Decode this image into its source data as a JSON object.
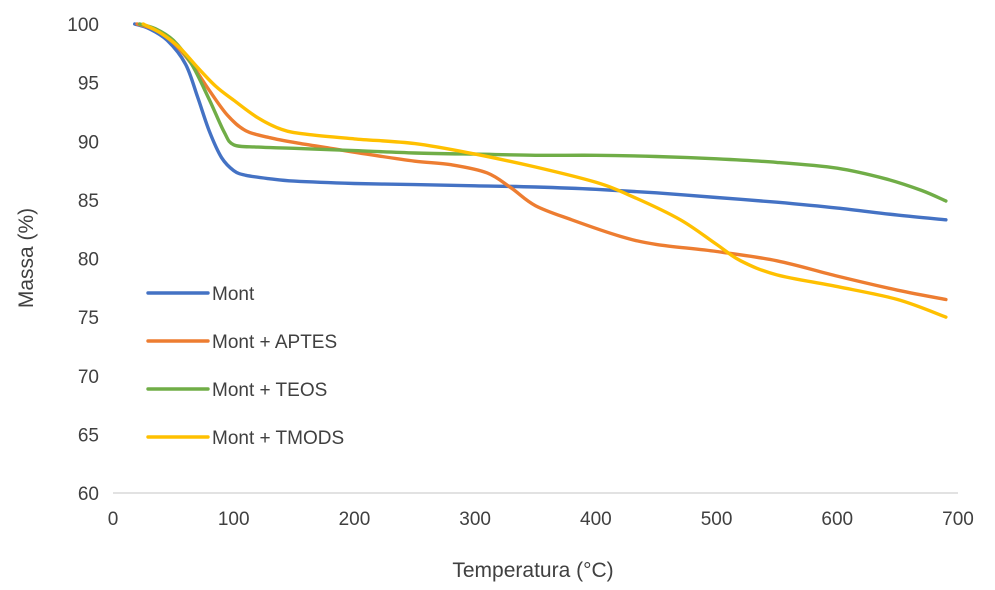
{
  "chart_data": {
    "type": "line",
    "title": "",
    "xlabel": "Temperatura (°C)",
    "ylabel": "Massa (%)",
    "xlim": [
      0,
      700
    ],
    "ylim": [
      60,
      100
    ],
    "xticks": [
      0,
      100,
      200,
      300,
      400,
      500,
      600,
      700
    ],
    "yticks": [
      60,
      65,
      70,
      75,
      80,
      85,
      90,
      95,
      100
    ],
    "grid": false,
    "legend_position": "left",
    "series": [
      {
        "name": "Mont",
        "color": "#4472C4",
        "points": [
          [
            18,
            100
          ],
          [
            30,
            99.6
          ],
          [
            45,
            98.6
          ],
          [
            60,
            96.6
          ],
          [
            70,
            93.8
          ],
          [
            80,
            90.8
          ],
          [
            90,
            88.6
          ],
          [
            100,
            87.5
          ],
          [
            110,
            87.1
          ],
          [
            130,
            86.8
          ],
          [
            150,
            86.6
          ],
          [
            200,
            86.4
          ],
          [
            250,
            86.3
          ],
          [
            300,
            86.2
          ],
          [
            350,
            86.1
          ],
          [
            400,
            85.9
          ],
          [
            450,
            85.6
          ],
          [
            500,
            85.2
          ],
          [
            550,
            84.8
          ],
          [
            600,
            84.3
          ],
          [
            650,
            83.7
          ],
          [
            690,
            83.3
          ]
        ]
      },
      {
        "name": "Mont + APTES",
        "color": "#ED7D31",
        "points": [
          [
            20,
            100
          ],
          [
            35,
            99.5
          ],
          [
            50,
            98.4
          ],
          [
            65,
            96.6
          ],
          [
            80,
            94.3
          ],
          [
            95,
            92.2
          ],
          [
            110,
            90.9
          ],
          [
            130,
            90.3
          ],
          [
            150,
            89.9
          ],
          [
            180,
            89.4
          ],
          [
            210,
            88.9
          ],
          [
            250,
            88.3
          ],
          [
            280,
            88
          ],
          [
            310,
            87.3
          ],
          [
            330,
            86
          ],
          [
            350,
            84.5
          ],
          [
            380,
            83.3
          ],
          [
            420,
            81.9
          ],
          [
            450,
            81.2
          ],
          [
            500,
            80.6
          ],
          [
            550,
            79.8
          ],
          [
            600,
            78.5
          ],
          [
            650,
            77.3
          ],
          [
            690,
            76.5
          ]
        ]
      },
      {
        "name": "Mont + TEOS",
        "color": "#70AD47",
        "points": [
          [
            22,
            100
          ],
          [
            35,
            99.6
          ],
          [
            50,
            98.6
          ],
          [
            65,
            96.6
          ],
          [
            80,
            93.5
          ],
          [
            92,
            90.8
          ],
          [
            100,
            89.7
          ],
          [
            120,
            89.5
          ],
          [
            150,
            89.4
          ],
          [
            200,
            89.2
          ],
          [
            250,
            89
          ],
          [
            300,
            88.9
          ],
          [
            350,
            88.8
          ],
          [
            400,
            88.8
          ],
          [
            450,
            88.7
          ],
          [
            500,
            88.5
          ],
          [
            550,
            88.2
          ],
          [
            600,
            87.7
          ],
          [
            640,
            86.8
          ],
          [
            670,
            85.8
          ],
          [
            690,
            84.9
          ]
        ]
      },
      {
        "name": "Mont + TMODS",
        "color": "#FFC000",
        "points": [
          [
            25,
            100
          ],
          [
            40,
            99.2
          ],
          [
            55,
            98
          ],
          [
            70,
            96.3
          ],
          [
            85,
            94.7
          ],
          [
            100,
            93.5
          ],
          [
            120,
            92
          ],
          [
            140,
            91
          ],
          [
            160,
            90.6
          ],
          [
            200,
            90.2
          ],
          [
            250,
            89.8
          ],
          [
            300,
            88.9
          ],
          [
            350,
            87.8
          ],
          [
            400,
            86.5
          ],
          [
            430,
            85.3
          ],
          [
            470,
            83.3
          ],
          [
            500,
            81.2
          ],
          [
            520,
            79.8
          ],
          [
            550,
            78.6
          ],
          [
            600,
            77.6
          ],
          [
            650,
            76.5
          ],
          [
            690,
            75
          ]
        ]
      }
    ]
  }
}
